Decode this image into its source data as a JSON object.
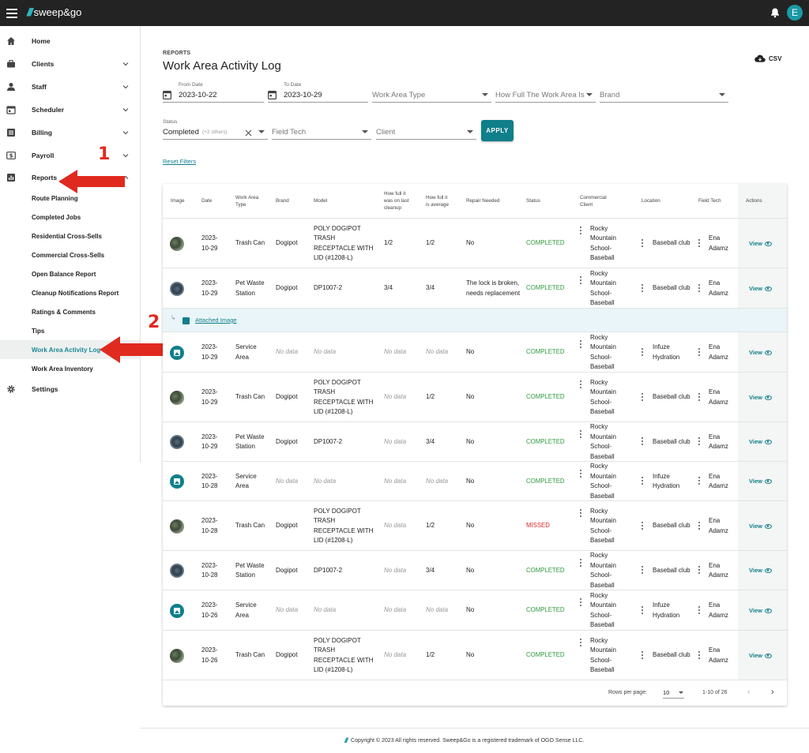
{
  "app": {
    "name": "sweep&go",
    "avatar_letter": "E"
  },
  "sidebar": {
    "items": [
      {
        "label": "Home",
        "icon": "home-icon",
        "chevron": false
      },
      {
        "label": "Clients",
        "icon": "briefcase-icon",
        "chevron": "down"
      },
      {
        "label": "Staff",
        "icon": "person-icon",
        "chevron": "down"
      },
      {
        "label": "Scheduler",
        "icon": "calendar-icon",
        "chevron": "down"
      },
      {
        "label": "Billing",
        "icon": "list-icon",
        "chevron": "down"
      },
      {
        "label": "Payroll",
        "icon": "dollar-icon",
        "chevron": "down"
      },
      {
        "label": "Reports",
        "icon": "bar-chart-icon",
        "chevron": "up"
      }
    ],
    "sub_items": [
      "Route Planning",
      "Completed Jobs",
      "Residential Cross-Sells",
      "Commercial Cross-Sells",
      "Open Balance Report",
      "Cleanup Notifications Report",
      "Ratings & Comments",
      "Tips",
      "Work Area Activity Log",
      "Work Area Inventory"
    ],
    "active_sub": "Work Area Activity Log",
    "settings_label": "Settings"
  },
  "annotations": {
    "one": "1",
    "two": "2",
    "color": "#e02a1f"
  },
  "header": {
    "section": "REPORTS",
    "title": "Work Area Activity Log",
    "csv_label": "CSV"
  },
  "filters": {
    "from_date": {
      "label": "From Date",
      "value": "2023-10-22"
    },
    "to_date": {
      "label": "To Date",
      "value": "2023-10-29"
    },
    "work_area_type": {
      "placeholder": "Work Area Type"
    },
    "how_full": {
      "placeholder": "How Full The Work Area Is"
    },
    "brand": {
      "placeholder": "Brand"
    },
    "status": {
      "label": "Status",
      "value": "Completed",
      "extra": "(+2 others)"
    },
    "field_tech": {
      "placeholder": "Field Tech"
    },
    "client": {
      "placeholder": "Client"
    },
    "apply_label": "APPLY",
    "reset_label": "Reset Filters"
  },
  "table": {
    "headers": [
      "Image",
      "Date",
      "Work Area Type",
      "Brand",
      "Model",
      "How full it was on last cleanup",
      "How full it is average",
      "Repair Needed",
      "Status",
      "Commercial Client",
      "Location",
      "Field Tech",
      "Actions"
    ],
    "attached_label": "Attached Image",
    "view_label": "View",
    "rows": [
      {
        "img": "photo",
        "date": "2023-10-29",
        "type": "Trash Can",
        "brand": "Dogipot",
        "model": "POLY DOGIPOT TRASH RECEPTACLE WITH LID (#1208-L)",
        "last": "1/2",
        "avg": "1/2",
        "repair": "No",
        "status": "COMPLETED",
        "client": "Rocky Mountain School-Baseball",
        "location": "Baseball club",
        "tech": "Ena Adamz"
      },
      {
        "img": "photo-alt",
        "date": "2023-10-29",
        "type": "Pet Waste Station",
        "brand": "Dogipot",
        "model": "DP1007-2",
        "last": "3/4",
        "avg": "3/4",
        "repair": "The lock is broken, needs replacement",
        "status": "COMPLETED",
        "client": "Rocky Mountain School-Baseball",
        "location": "Baseball club",
        "tech": "Ena Adamz"
      },
      {
        "img": "icon",
        "date": "2023-10-29",
        "type": "Service Area",
        "brand": "No data",
        "model": "No data",
        "last": "No data",
        "avg": "No data",
        "repair": "No",
        "status": "COMPLETED",
        "client": "Rocky Mountain School-Baseball",
        "location": "Infuze Hydration",
        "tech": "Ena Adamz"
      },
      {
        "img": "photo",
        "date": "2023-10-29",
        "type": "Trash Can",
        "brand": "Dogipot",
        "model": "POLY DOGIPOT TRASH RECEPTACLE WITH LID (#1208-L)",
        "last": "No data",
        "avg": "1/2",
        "repair": "No",
        "status": "COMPLETED",
        "client": "Rocky Mountain School-Baseball",
        "location": "Baseball club",
        "tech": "Ena Adamz"
      },
      {
        "img": "photo-alt",
        "date": "2023-10-29",
        "type": "Pet Waste Station",
        "brand": "Dogipot",
        "model": "DP1007-2",
        "last": "No data",
        "avg": "3/4",
        "repair": "No",
        "status": "COMPLETED",
        "client": "Rocky Mountain School-Baseball",
        "location": "Baseball club",
        "tech": "Ena Adamz"
      },
      {
        "img": "icon",
        "date": "2023-10-28",
        "type": "Service Area",
        "brand": "No data",
        "model": "No data",
        "last": "No data",
        "avg": "No data",
        "repair": "No",
        "status": "COMPLETED",
        "client": "Rocky Mountain School-Baseball",
        "location": "Infuze Hydration",
        "tech": "Ena Adamz"
      },
      {
        "img": "photo",
        "date": "2023-10-28",
        "type": "Trash Can",
        "brand": "Dogipot",
        "model": "POLY DOGIPOT TRASH RECEPTACLE WITH LID (#1208-L)",
        "last": "No data",
        "avg": "1/2",
        "repair": "No",
        "status": "MISSED",
        "client": "Rocky Mountain School-Baseball",
        "location": "Baseball club",
        "tech": "Ena Adamz"
      },
      {
        "img": "photo-alt",
        "date": "2023-10-28",
        "type": "Pet Waste Station",
        "brand": "Dogipot",
        "model": "DP1007-2",
        "last": "No data",
        "avg": "3/4",
        "repair": "No",
        "status": "COMPLETED",
        "client": "Rocky Mountain School-Baseball",
        "location": "Baseball club",
        "tech": "Ena Adamz"
      },
      {
        "img": "icon",
        "date": "2023-10-26",
        "type": "Service Area",
        "brand": "No data",
        "model": "No data",
        "last": "No data",
        "avg": "No data",
        "repair": "No",
        "status": "COMPLETED",
        "client": "Rocky Mountain School-Baseball",
        "location": "Infuze Hydration",
        "tech": "Ena Adamz"
      },
      {
        "img": "photo",
        "date": "2023-10-26",
        "type": "Trash Can",
        "brand": "Dogipot",
        "model": "POLY DOGIPOT TRASH RECEPTACLE WITH LID (#1208-L)",
        "last": "No data",
        "avg": "1/2",
        "repair": "No",
        "status": "COMPLETED",
        "client": "Rocky Mountain School-Baseball",
        "location": "Baseball club",
        "tech": "Ena Adamz"
      }
    ],
    "pagination": {
      "rows_per_page_label": "Rows per page:",
      "rows_per_page": "10",
      "range": "1-10 of 26"
    }
  },
  "footer": {
    "copyright": "Copyright © 2023 All rights reserved. Sweep&Go is a registered trademark of OGO Sense LLC."
  },
  "colors": {
    "accent": "#0f7f8a",
    "completed": "#2e9a3e",
    "missed": "#d82a2a",
    "topbar": "#232323"
  }
}
